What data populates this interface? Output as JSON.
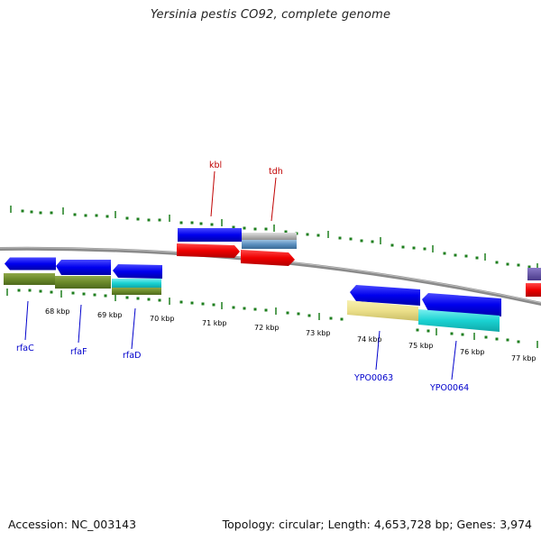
{
  "header": {
    "title": "Yersinia pestis CO92, complete genome"
  },
  "footer": {
    "accession": "Accession: NC_003143",
    "summary": "Topology: circular; Length: 4,653,728 bp; Genes: 3,974"
  },
  "colors": {
    "backbone": "#8a8a8a",
    "tick": "#1f7f1f",
    "label_top": "#c00000",
    "label_bottom": "#0000cc"
  },
  "scale": {
    "kbp_labels": [
      "68 kbp",
      "69 kbp",
      "70 kbp",
      "71 kbp",
      "72 kbp",
      "73 kbp",
      "74 kbp",
      "75 kbp",
      "76 kbp",
      "77 kbp"
    ]
  },
  "genes": {
    "top_labels": [
      "kbl",
      "tdh"
    ],
    "bottom_labels": [
      "rfaC",
      "rfaF",
      "rfaD",
      "YPO0063",
      "YPO0064"
    ]
  }
}
